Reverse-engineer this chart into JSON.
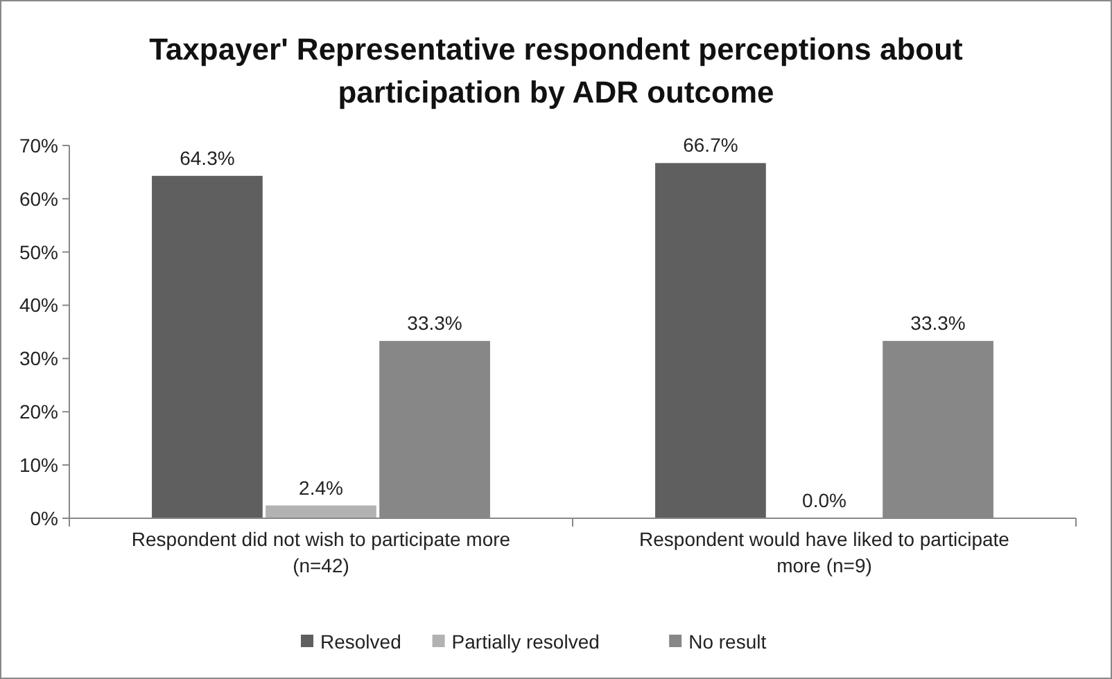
{
  "chart_data": {
    "type": "bar",
    "title": "Taxpayer' Representative respondent perceptions about participation by ADR outcome",
    "categories": [
      "Respondent did not wish to participate more (n=42)",
      "Respondent would have liked to participate more (n=9)"
    ],
    "series": [
      {
        "name": "Resolved",
        "color": "#5f5f5f",
        "values": [
          64.3,
          66.7
        ],
        "value_labels": [
          "64.3%",
          "66.7%"
        ]
      },
      {
        "name": "Partially resolved",
        "color": "#b2b2b2",
        "values": [
          2.4,
          0.0
        ],
        "value_labels": [
          "2.4%",
          "0.0%"
        ]
      },
      {
        "name": "No result",
        "color": "#878787",
        "values": [
          33.3,
          33.3
        ],
        "value_labels": [
          "33.3%",
          "33.3%"
        ]
      }
    ],
    "ylim": [
      0,
      70
    ],
    "yticks": [
      {
        "value": 0,
        "label": "0%"
      },
      {
        "value": 10,
        "label": "10%"
      },
      {
        "value": 20,
        "label": "20%"
      },
      {
        "value": 30,
        "label": "30%"
      },
      {
        "value": 40,
        "label": "40%"
      },
      {
        "value": 50,
        "label": "50%"
      },
      {
        "value": 60,
        "label": "60%"
      },
      {
        "value": 70,
        "label": "70%"
      }
    ],
    "grid": false,
    "legend": "bottom"
  }
}
